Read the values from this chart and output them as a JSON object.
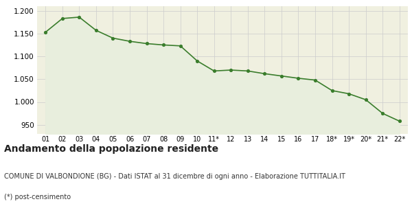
{
  "x_labels": [
    "01",
    "02",
    "03",
    "04",
    "05",
    "06",
    "07",
    "08",
    "09",
    "10",
    "11*",
    "12",
    "13",
    "14",
    "15",
    "16",
    "17",
    "18*",
    "19*",
    "20*",
    "21*",
    "22*"
  ],
  "y_values": [
    1153,
    1183,
    1186,
    1157,
    1140,
    1133,
    1128,
    1125,
    1123,
    1090,
    1068,
    1070,
    1068,
    1062,
    1057,
    1052,
    1048,
    1025,
    1018,
    1005,
    975,
    958
  ],
  "line_color": "#3a7d2c",
  "fill_color": "#e8eedd",
  "marker_color": "#3a7d2c",
  "background_color": "#f0f0e0",
  "title": "Andamento della popolazione residente",
  "subtitle": "COMUNE DI VALBONDIONE (BG) - Dati ISTAT al 31 dicembre di ogni anno - Elaborazione TUTTITALIA.IT",
  "footnote": "(*) post-censimento",
  "ylim": [
    930,
    1210
  ],
  "yticks": [
    950,
    1000,
    1050,
    1100,
    1150,
    1200
  ],
  "title_fontsize": 10,
  "subtitle_fontsize": 7,
  "footnote_fontsize": 7,
  "xtick_fontsize": 7,
  "ytick_fontsize": 7.5
}
